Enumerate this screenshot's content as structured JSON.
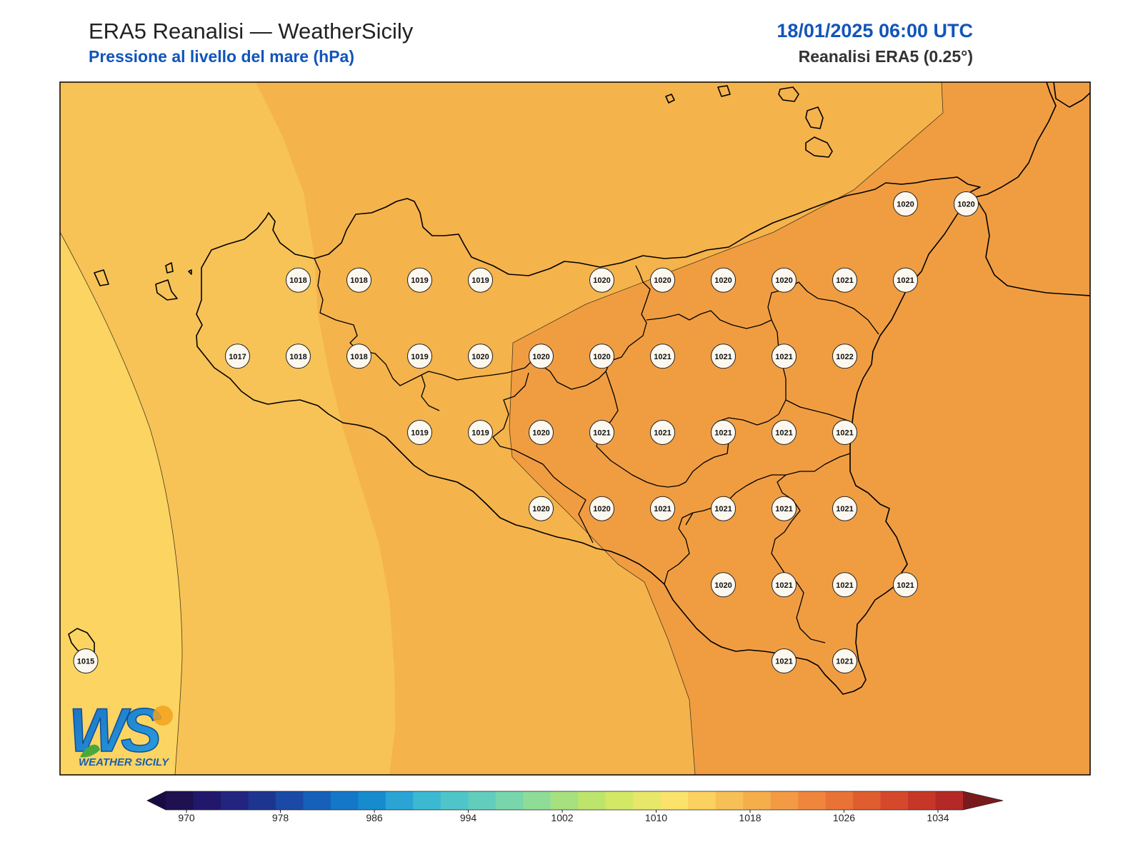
{
  "header": {
    "title": "ERA5 Reanalisi — WeatherSicily",
    "subtitle": "Pressione al livello del mare (hPa)",
    "datetime": "18/01/2025 06:00 UTC",
    "source": "Reanalisi ERA5 (0.25°)"
  },
  "logo": {
    "letters": "WS",
    "text": "WEATHER SICILY"
  },
  "colorbar": {
    "ticks": [
      "970",
      "978",
      "986",
      "994",
      "1002",
      "1010",
      "1018",
      "1026",
      "1034"
    ],
    "colors": [
      "#1f1050",
      "#21186b",
      "#22247f",
      "#1e3590",
      "#1a4aa6",
      "#1660b9",
      "#1477c8",
      "#168ccf",
      "#2aa4d4",
      "#3bb9d3",
      "#4fc5c9",
      "#62cdbd",
      "#78d6ac",
      "#8fdc97",
      "#a6e07f",
      "#bde46b",
      "#d3e865",
      "#e7e86a",
      "#fbe26a",
      "#fbd25f",
      "#f7c056",
      "#f5ae4c",
      "#f39b44",
      "#ef863c",
      "#e97236",
      "#e05d30",
      "#d5482b",
      "#c63728",
      "#b42927"
    ],
    "extend_low": "#1a0a44",
    "extend_high": "#7a1a1c"
  },
  "chart_data": {
    "type": "map",
    "variable": "Pressione al livello del mare (hPa)",
    "levels_hPa": [
      1014,
      1016,
      1018,
      1020,
      1022
    ],
    "fill_colors": {
      "1014_1016": "#fbd462",
      "1016_1018": "#f7c357",
      "1018_1020": "#f5b34c",
      "1020_1022": "#f09d42"
    },
    "station_values": [
      {
        "lon": 12.6,
        "lat": 38.05,
        "value": 1018
      },
      {
        "lon": 13.0,
        "lat": 38.05,
        "value": 1018
      },
      {
        "lon": 13.4,
        "lat": 38.05,
        "value": 1019
      },
      {
        "lon": 13.8,
        "lat": 38.05,
        "value": 1019
      },
      {
        "lon": 14.6,
        "lat": 38.05,
        "value": 1020
      },
      {
        "lon": 15.0,
        "lat": 38.05,
        "value": 1020
      },
      {
        "lon": 15.4,
        "lat": 38.05,
        "value": 1020
      },
      {
        "lon": 15.8,
        "lat": 38.05,
        "value": 1020
      },
      {
        "lon": 16.2,
        "lat": 38.05,
        "value": 1021
      },
      {
        "lon": 16.6,
        "lat": 38.05,
        "value": 1021
      },
      {
        "lon": 16.6,
        "lat": 38.55,
        "value": 1020
      },
      {
        "lon": 17.0,
        "lat": 38.55,
        "value": 1020
      },
      {
        "lon": 12.2,
        "lat": 37.55,
        "value": 1017
      },
      {
        "lon": 12.6,
        "lat": 37.55,
        "value": 1018
      },
      {
        "lon": 13.0,
        "lat": 37.55,
        "value": 1018
      },
      {
        "lon": 13.4,
        "lat": 37.55,
        "value": 1019
      },
      {
        "lon": 13.8,
        "lat": 37.55,
        "value": 1020
      },
      {
        "lon": 14.2,
        "lat": 37.55,
        "value": 1020
      },
      {
        "lon": 14.6,
        "lat": 37.55,
        "value": 1020
      },
      {
        "lon": 15.0,
        "lat": 37.55,
        "value": 1021
      },
      {
        "lon": 15.4,
        "lat": 37.55,
        "value": 1021
      },
      {
        "lon": 15.8,
        "lat": 37.55,
        "value": 1021
      },
      {
        "lon": 16.2,
        "lat": 37.55,
        "value": 1022
      },
      {
        "lon": 13.4,
        "lat": 37.05,
        "value": 1019
      },
      {
        "lon": 13.8,
        "lat": 37.05,
        "value": 1019
      },
      {
        "lon": 14.2,
        "lat": 37.05,
        "value": 1020
      },
      {
        "lon": 14.6,
        "lat": 37.05,
        "value": 1021
      },
      {
        "lon": 15.0,
        "lat": 37.05,
        "value": 1021
      },
      {
        "lon": 15.4,
        "lat": 37.05,
        "value": 1021
      },
      {
        "lon": 15.8,
        "lat": 37.05,
        "value": 1021
      },
      {
        "lon": 16.2,
        "lat": 37.05,
        "value": 1021
      },
      {
        "lon": 14.2,
        "lat": 36.55,
        "value": 1020
      },
      {
        "lon": 14.6,
        "lat": 36.55,
        "value": 1020
      },
      {
        "lon": 15.0,
        "lat": 36.55,
        "value": 1021
      },
      {
        "lon": 15.4,
        "lat": 36.55,
        "value": 1021
      },
      {
        "lon": 15.8,
        "lat": 36.55,
        "value": 1021
      },
      {
        "lon": 16.2,
        "lat": 36.55,
        "value": 1021
      },
      {
        "lon": 15.4,
        "lat": 36.05,
        "value": 1020
      },
      {
        "lon": 15.8,
        "lat": 36.05,
        "value": 1021
      },
      {
        "lon": 16.2,
        "lat": 36.05,
        "value": 1021
      },
      {
        "lon": 16.6,
        "lat": 36.05,
        "value": 1021
      },
      {
        "lon": 15.8,
        "lat": 35.55,
        "value": 1021
      },
      {
        "lon": 16.2,
        "lat": 35.55,
        "value": 1021
      },
      {
        "lon": 11.2,
        "lat": 35.55,
        "value": 1015
      }
    ]
  }
}
